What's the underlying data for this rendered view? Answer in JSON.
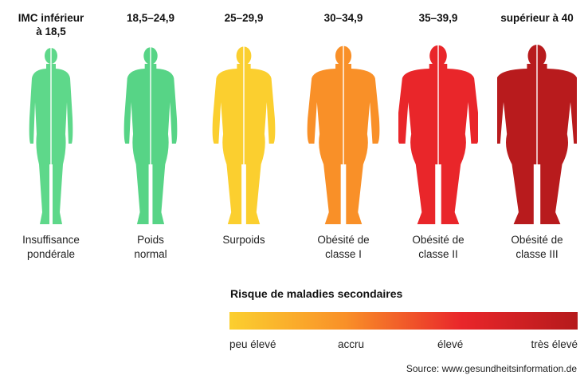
{
  "bmi_columns": [
    {
      "range": "IMC inférieur\nà 18,5",
      "category": "Insuffisance\npondérale",
      "color": "#5ed88a",
      "build": 0
    },
    {
      "range": "18,5–24,9",
      "category": "Poids\nnormal",
      "color": "#57d486",
      "build": 1
    },
    {
      "range": "25–29,9",
      "category": "Surpoids",
      "color": "#fbcf2f",
      "build": 2
    },
    {
      "range": "30–34,9",
      "category": "Obésité de\nclasse I",
      "color": "#f99028",
      "build": 3
    },
    {
      "range": "35–39,9",
      "category": "Obésité de\nclasse II",
      "color": "#e9262a",
      "build": 4
    },
    {
      "range": "supérieur à 40",
      "category": "Obésité de\nclasse III",
      "color": "#b81b1d",
      "build": 5
    }
  ],
  "risk": {
    "title": "Risque de maladies secondaires",
    "gradient": [
      "#fbcf2f",
      "#f99028",
      "#e9262a",
      "#b51a1c"
    ],
    "labels": [
      "peu élevé",
      "accru",
      "élevé",
      "très élevé"
    ]
  },
  "source": "Source: www.gesundheitsinformation.de"
}
